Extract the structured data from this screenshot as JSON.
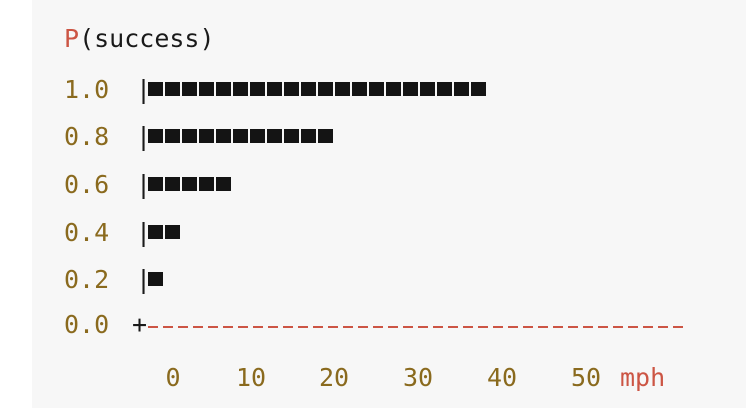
{
  "chart_data": {
    "type": "bar",
    "title": "P(success)",
    "title_prefix": "P",
    "title_suffix": "(success)",
    "y_tick_labels": [
      "1.0",
      "0.8",
      "0.6",
      "0.4",
      "0.2"
    ],
    "origin_label": "0.0",
    "categories": [
      "1.0",
      "0.8",
      "0.6",
      "0.4",
      "0.2"
    ],
    "values": [
      38,
      20.5,
      9.5,
      4,
      2
    ],
    "xlabel": "mph",
    "x_tick_labels": [
      "0",
      "10",
      "20",
      "30",
      "40",
      "50"
    ],
    "xlim": [
      0,
      60
    ],
    "orientation": "horizontal",
    "colors": {
      "bar": "#141414",
      "axis_dashes": "#cc5544",
      "tick_labels": "#8a6a1e",
      "unit_label": "#cc5544",
      "title_prefix": "#cc5544"
    }
  }
}
